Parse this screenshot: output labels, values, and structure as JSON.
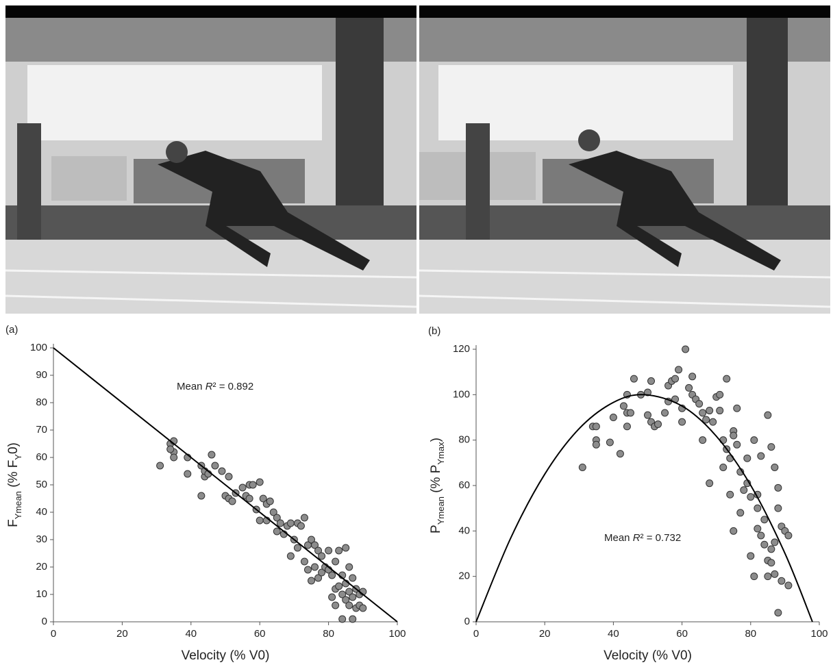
{
  "chart_data": [
    {
      "type": "scatter",
      "panel_label": "(a)",
      "x_label": "Velocity (% V0)",
      "y_label": [
        "F",
        "Ymean",
        " (% F",
        "Y",
        "0)"
      ],
      "annotation": [
        "Mean ",
        "R",
        "² = 0.892"
      ],
      "xlim": [
        0,
        100
      ],
      "xticks": [
        0,
        20,
        40,
        60,
        80,
        100
      ],
      "ylim": [
        0,
        100
      ],
      "yticks": [
        0,
        10,
        20,
        30,
        40,
        50,
        60,
        70,
        80,
        90,
        100
      ],
      "series": [
        {
          "color": "#8c8c8c",
          "x": [
            31,
            34,
            35,
            35,
            35,
            34,
            39,
            39,
            43,
            43,
            44,
            44,
            45,
            46,
            47,
            49,
            50,
            51,
            51,
            52,
            53,
            55,
            56,
            57,
            57,
            58,
            59,
            60,
            60,
            61,
            62,
            62,
            63,
            64,
            65,
            65,
            66,
            67,
            68,
            69,
            69,
            70,
            71,
            71,
            72,
            73,
            73,
            74,
            74,
            75,
            75,
            76,
            76,
            77,
            77,
            78,
            78,
            79,
            80,
            80,
            81,
            81,
            82,
            82,
            82,
            83,
            83,
            84,
            84,
            84,
            85,
            85,
            85,
            86,
            86,
            86,
            87,
            87,
            87,
            88,
            88,
            89,
            89,
            90,
            90
          ],
          "values": [
            57,
            65,
            66,
            62,
            60,
            63,
            60,
            54,
            57,
            46,
            53,
            55,
            54,
            61,
            57,
            55,
            46,
            45,
            53,
            44,
            47,
            49,
            46,
            45,
            50,
            50,
            41,
            51,
            37,
            45,
            37,
            43,
            44,
            40,
            38,
            33,
            36,
            32,
            35,
            24,
            36,
            30,
            36,
            27,
            35,
            38,
            22,
            28,
            19,
            30,
            15,
            28,
            20,
            26,
            16,
            24,
            18,
            20,
            26,
            19,
            9,
            17,
            12,
            22,
            6,
            13,
            26,
            10,
            17,
            1,
            14,
            27,
            8,
            6,
            11,
            20,
            1,
            16,
            9,
            12,
            5,
            10,
            6,
            5,
            11
          ]
        }
      ],
      "fit": {
        "color": "#000000",
        "x": [
          0,
          100
        ],
        "values": [
          100,
          0
        ]
      }
    },
    {
      "type": "scatter",
      "panel_label": "(b)",
      "x_label": "Velocity (% V0)",
      "y_label": [
        "P",
        "Ymean",
        " (% P",
        "Ymax",
        ")"
      ],
      "annotation": [
        "Mean ",
        "R",
        "² = 0.732"
      ],
      "xlim": [
        0,
        100
      ],
      "xticks": [
        0,
        20,
        40,
        60,
        80,
        100
      ],
      "ylim": [
        0,
        120
      ],
      "yticks": [
        0,
        20,
        40,
        60,
        80,
        100,
        120
      ],
      "series": [
        {
          "color": "#8c8c8c",
          "x": [
            31,
            34,
            35,
            35,
            35,
            39,
            40,
            42,
            43,
            44,
            44,
            44,
            45,
            46,
            48,
            50,
            50,
            51,
            51,
            52,
            53,
            55,
            56,
            56,
            57,
            58,
            58,
            59,
            60,
            60,
            61,
            62,
            63,
            63,
            64,
            65,
            66,
            66,
            67,
            68,
            68,
            69,
            70,
            71,
            71,
            72,
            72,
            73,
            73,
            74,
            74,
            75,
            75,
            75,
            76,
            76,
            77,
            77,
            78,
            79,
            79,
            80,
            80,
            81,
            81,
            82,
            82,
            82,
            83,
            83,
            84,
            84,
            85,
            85,
            85,
            86,
            86,
            86,
            87,
            87,
            87,
            88,
            88,
            88,
            89,
            89,
            90,
            91,
            91
          ],
          "values": [
            68,
            86,
            80,
            78,
            86,
            79,
            90,
            74,
            95,
            100,
            86,
            92,
            92,
            107,
            100,
            101,
            91,
            88,
            106,
            86,
            87,
            92,
            97,
            104,
            106,
            107,
            98,
            111,
            94,
            88,
            120,
            103,
            100,
            108,
            98,
            96,
            80,
            92,
            89,
            61,
            93,
            88,
            99,
            93,
            100,
            80,
            68,
            76,
            107,
            72,
            56,
            40,
            84,
            82,
            78,
            94,
            48,
            66,
            58,
            72,
            61,
            55,
            29,
            80,
            20,
            50,
            56,
            41,
            38,
            73,
            45,
            34,
            91,
            27,
            20,
            32,
            77,
            26,
            68,
            35,
            21,
            59,
            4,
            50,
            42,
            18,
            40,
            16,
            38
          ]
        }
      ],
      "fit": {
        "color": "#000000",
        "x": [
          0,
          10,
          20,
          30,
          40,
          49,
          60,
          70,
          80,
          90,
          98
        ],
        "values": [
          0,
          36.6,
          65,
          85,
          96.6,
          100,
          95,
          81.7,
          60.1,
          30.1,
          0
        ]
      }
    }
  ]
}
